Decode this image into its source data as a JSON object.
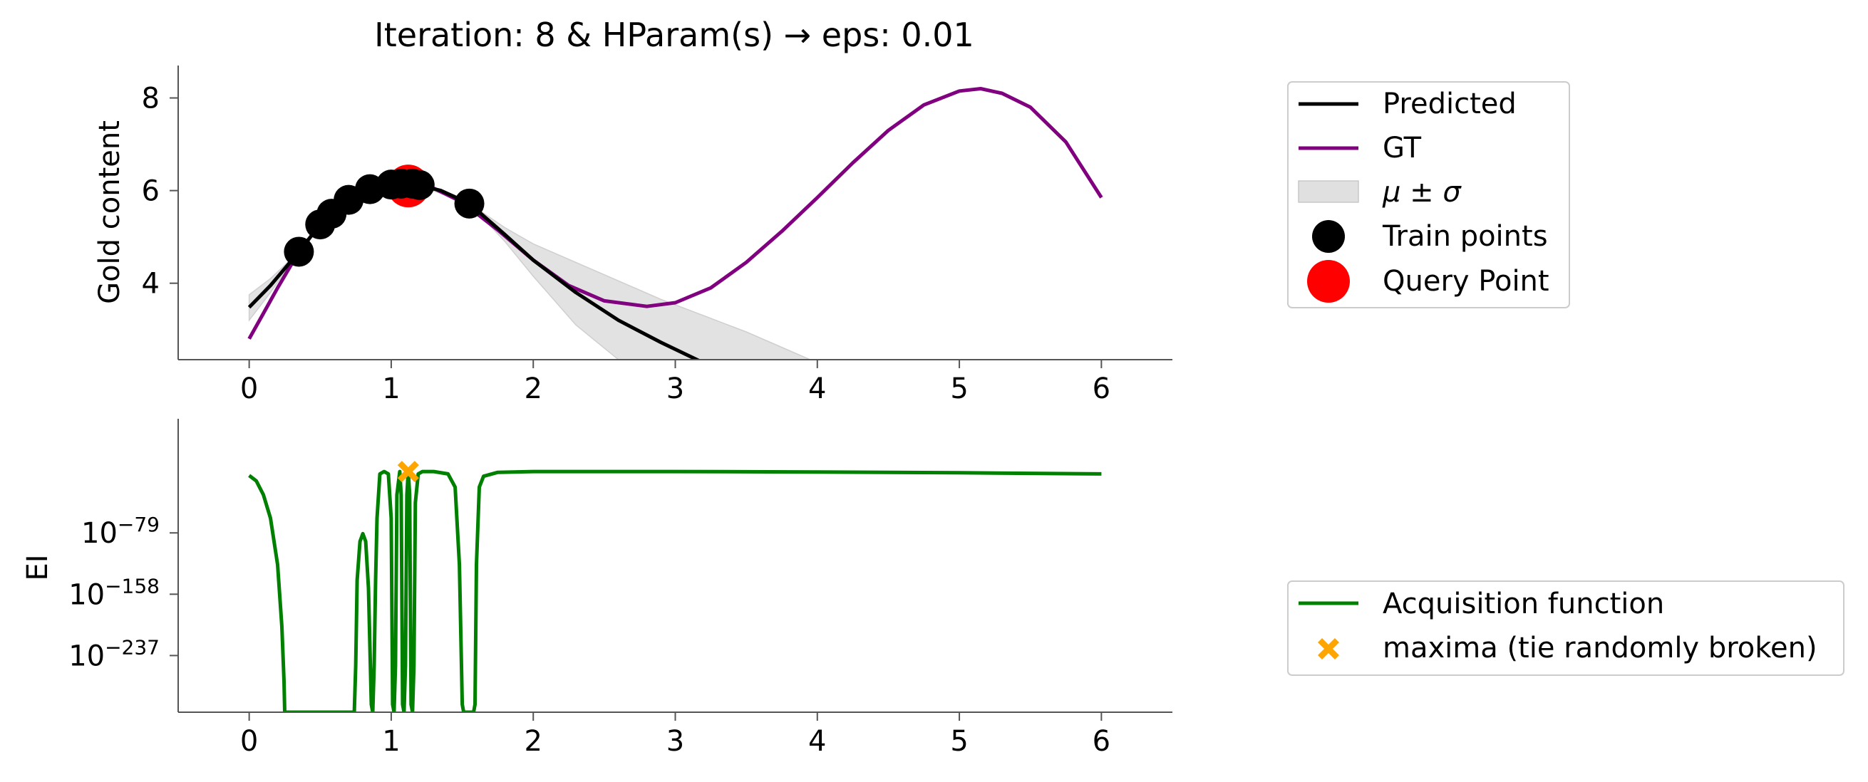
{
  "title": "Iteration: 8 & HParam(s) → eps: 0.01",
  "colors": {
    "predicted": "#000000",
    "gt": "#800080",
    "band": "#d9d9d9",
    "train": "#000000",
    "query": "#ff0000",
    "acq": "#008000",
    "maxima": "#ffa500"
  },
  "chart_data": [
    {
      "type": "line",
      "panel": "top",
      "ylabel": "Gold content",
      "xlabel": "",
      "xlim": [
        -0.5,
        6.5
      ],
      "ylim": [
        2.35,
        8.7
      ],
      "xticks": [
        "0",
        "1",
        "2",
        "3",
        "4",
        "5",
        "6"
      ],
      "yticks": [
        "4",
        "6",
        "8"
      ],
      "grid": false,
      "legend_position": "right-top",
      "series": [
        {
          "name": "Predicted",
          "color": "#000000",
          "points": [
            [
              0.0,
              3.48
            ],
            [
              0.15,
              3.95
            ],
            [
              0.35,
              4.68
            ],
            [
              0.5,
              5.27
            ],
            [
              0.6,
              5.52
            ],
            [
              0.7,
              5.8
            ],
            [
              0.85,
              6.03
            ],
            [
              1.0,
              6.13
            ],
            [
              1.1,
              6.16
            ],
            [
              1.2,
              6.11
            ],
            [
              1.35,
              6.0
            ],
            [
              1.55,
              5.72
            ],
            [
              1.8,
              5.05
            ],
            [
              2.0,
              4.5
            ],
            [
              2.3,
              3.8
            ],
            [
              2.6,
              3.2
            ],
            [
              2.9,
              2.72
            ],
            [
              3.2,
              2.28
            ]
          ]
        },
        {
          "name": "GT",
          "color": "#800080",
          "points": [
            [
              0.0,
              2.8
            ],
            [
              0.1,
              3.35
            ],
            [
              0.2,
              3.9
            ],
            [
              0.35,
              4.68
            ],
            [
              0.5,
              5.27
            ],
            [
              0.7,
              5.8
            ],
            [
              0.85,
              6.03
            ],
            [
              1.0,
              6.15
            ],
            [
              1.15,
              6.18
            ],
            [
              1.3,
              6.05
            ],
            [
              1.5,
              5.75
            ],
            [
              1.75,
              5.15
            ],
            [
              2.0,
              4.5
            ],
            [
              2.25,
              3.95
            ],
            [
              2.5,
              3.62
            ],
            [
              2.8,
              3.5
            ],
            [
              3.0,
              3.58
            ],
            [
              3.25,
              3.9
            ],
            [
              3.5,
              4.45
            ],
            [
              3.75,
              5.12
            ],
            [
              4.0,
              5.85
            ],
            [
              4.25,
              6.6
            ],
            [
              4.5,
              7.3
            ],
            [
              4.75,
              7.85
            ],
            [
              5.0,
              8.15
            ],
            [
              5.15,
              8.2
            ],
            [
              5.3,
              8.1
            ],
            [
              5.5,
              7.8
            ],
            [
              5.75,
              7.05
            ],
            [
              6.0,
              5.85
            ]
          ]
        }
      ],
      "band": {
        "name": "μ ± σ",
        "upper": [
          [
            0.0,
            3.75
          ],
          [
            0.15,
            4.1
          ],
          [
            0.35,
            4.68
          ],
          [
            0.5,
            5.27
          ],
          [
            0.7,
            5.8
          ],
          [
            0.85,
            6.03
          ],
          [
            1.0,
            6.14
          ],
          [
            1.2,
            6.12
          ],
          [
            1.55,
            5.72
          ],
          [
            1.8,
            5.2
          ],
          [
            2.0,
            4.85
          ],
          [
            2.3,
            4.45
          ],
          [
            2.6,
            4.05
          ],
          [
            2.9,
            3.65
          ],
          [
            3.2,
            3.3
          ],
          [
            3.5,
            2.95
          ],
          [
            3.8,
            2.55
          ],
          [
            3.95,
            2.35
          ]
        ],
        "lower": [
          [
            3.95,
            2.35
          ],
          [
            2.6,
            2.35
          ],
          [
            2.3,
            3.1
          ],
          [
            2.0,
            4.15
          ],
          [
            1.8,
            4.9
          ],
          [
            1.55,
            5.72
          ],
          [
            1.2,
            6.1
          ],
          [
            1.0,
            6.12
          ],
          [
            0.85,
            6.03
          ],
          [
            0.7,
            5.8
          ],
          [
            0.5,
            5.27
          ],
          [
            0.35,
            4.68
          ],
          [
            0.15,
            3.8
          ],
          [
            0.0,
            3.2
          ]
        ]
      },
      "train_points": {
        "name": "Train points",
        "x": [
          0.35,
          0.5,
          0.58,
          0.7,
          0.85,
          1.0,
          1.07,
          1.15,
          1.2,
          1.55
        ],
        "y": [
          4.68,
          5.27,
          5.5,
          5.8,
          6.03,
          6.13,
          6.15,
          6.15,
          6.12,
          5.72
        ]
      },
      "query_point": {
        "name": "Query Point",
        "x": 1.12,
        "y": 6.1
      }
    },
    {
      "type": "line",
      "panel": "bottom",
      "ylabel": "EI",
      "xlabel": "",
      "xlim": [
        -0.5,
        6.5
      ],
      "ylim": [
        -310,
        68
      ],
      "yscale": "log",
      "xticks": [
        "0",
        "1",
        "2",
        "3",
        "4",
        "5",
        "6"
      ],
      "yticks": [
        {
          "value": -79,
          "base": "10",
          "exp": "−79"
        },
        {
          "value": -158,
          "base": "10",
          "exp": "−158"
        },
        {
          "value": -237,
          "base": "10",
          "exp": "−237"
        }
      ],
      "grid": false,
      "legend_position": "right-bottom",
      "series": [
        {
          "name": "Acquisition function",
          "color": "#008000",
          "points": [
            [
              0.0,
              -5
            ],
            [
              0.05,
              -12
            ],
            [
              0.1,
              -30
            ],
            [
              0.15,
              -60
            ],
            [
              0.2,
              -120
            ],
            [
              0.23,
              -200
            ],
            [
              0.245,
              -270
            ],
            [
              0.25,
              -310
            ],
            [
              0.74,
              -310
            ],
            [
              0.75,
              -250
            ],
            [
              0.76,
              -140
            ],
            [
              0.78,
              -90
            ],
            [
              0.8,
              -80
            ],
            [
              0.82,
              -90
            ],
            [
              0.84,
              -150
            ],
            [
              0.86,
              -300
            ],
            [
              0.87,
              -310
            ],
            [
              0.88,
              -250
            ],
            [
              0.89,
              -140
            ],
            [
              0.9,
              -60
            ],
            [
              0.92,
              -3
            ],
            [
              0.95,
              0
            ],
            [
              0.98,
              -3
            ],
            [
              1.0,
              -60
            ],
            [
              1.01,
              -300
            ],
            [
              1.02,
              -310
            ],
            [
              1.03,
              -250
            ],
            [
              1.04,
              -30
            ],
            [
              1.06,
              0
            ],
            [
              1.07,
              -30
            ],
            [
              1.08,
              -300
            ],
            [
              1.09,
              -310
            ],
            [
              1.1,
              -250
            ],
            [
              1.11,
              -30
            ],
            [
              1.12,
              0
            ],
            [
              1.13,
              -30
            ],
            [
              1.14,
              -300
            ],
            [
              1.15,
              -310
            ],
            [
              1.16,
              -250
            ],
            [
              1.17,
              -40
            ],
            [
              1.19,
              -3
            ],
            [
              1.22,
              0
            ],
            [
              1.3,
              0
            ],
            [
              1.4,
              -3
            ],
            [
              1.45,
              -20
            ],
            [
              1.48,
              -120
            ],
            [
              1.5,
              -300
            ],
            [
              1.51,
              -310
            ],
            [
              1.58,
              -310
            ],
            [
              1.59,
              -300
            ],
            [
              1.6,
              -120
            ],
            [
              1.62,
              -20
            ],
            [
              1.65,
              -6
            ],
            [
              1.75,
              -1
            ],
            [
              2.0,
              0
            ],
            [
              3.0,
              0
            ],
            [
              4.0,
              -0.5
            ],
            [
              5.0,
              -1.5
            ],
            [
              6.0,
              -3
            ]
          ]
        }
      ],
      "maxima": {
        "name": "maxima (tie randomly broken)",
        "x": 1.12,
        "y": 0
      }
    }
  ]
}
